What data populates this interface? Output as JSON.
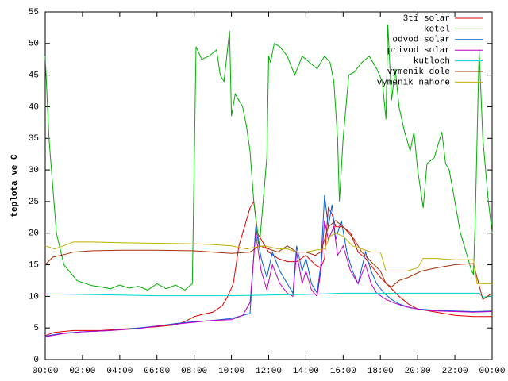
{
  "chart_data": {
    "type": "line",
    "ylabel": "teplota ve C",
    "xlim": [
      0,
      24
    ],
    "ylim": [
      0,
      55
    ],
    "xticks": [
      {
        "value": 0,
        "label": "00:00"
      },
      {
        "value": 2,
        "label": "02:00"
      },
      {
        "value": 4,
        "label": "04:00"
      },
      {
        "value": 6,
        "label": "06:00"
      },
      {
        "value": 8,
        "label": "08:00"
      },
      {
        "value": 10,
        "label": "10:00"
      },
      {
        "value": 12,
        "label": "12:00"
      },
      {
        "value": 14,
        "label": "14:00"
      },
      {
        "value": 16,
        "label": "16:00"
      },
      {
        "value": 18,
        "label": "18:00"
      },
      {
        "value": 20,
        "label": "20:00"
      },
      {
        "value": 22,
        "label": "22:00"
      },
      {
        "value": 24,
        "label": "00:00"
      }
    ],
    "yticks": [
      0,
      5,
      10,
      15,
      20,
      25,
      30,
      35,
      40,
      45,
      50,
      55
    ],
    "grid": false,
    "legend": "top-right",
    "series": [
      {
        "name": "3ti solar",
        "color": "#e00000",
        "x": [
          0,
          0.5,
          1.5,
          3,
          4,
          5,
          6,
          7,
          7.5,
          8,
          8.5,
          9,
          9.5,
          9.8,
          10.1,
          10.4,
          10.7,
          11.0,
          11.2,
          11.4,
          11.6,
          12.0,
          12.5,
          13.0,
          13.5,
          14.0,
          14.5,
          14.8,
          15.0,
          15.2,
          15.4,
          15.6,
          16.0,
          16.4,
          16.6,
          16.8,
          17.2,
          17.6,
          18.0,
          18.5,
          19.0,
          19.5,
          20,
          21,
          22,
          23,
          24
        ],
        "values": [
          3.8,
          4.3,
          4.6,
          4.6,
          4.8,
          5,
          5.2,
          5.5,
          6,
          6.8,
          7.2,
          7.5,
          8.5,
          10,
          12,
          18,
          21,
          24,
          25,
          20,
          19,
          17,
          16,
          15.5,
          15.5,
          16.5,
          15,
          14.5,
          16,
          24,
          23,
          21,
          21,
          20,
          18.5,
          17,
          16,
          14.5,
          13,
          11.5,
          10,
          8.8,
          8,
          7.5,
          7,
          6.8,
          6.8
        ]
      },
      {
        "name": "kotel",
        "color": "#00b000",
        "x": [
          0,
          0.2,
          0.6,
          1,
          1.7,
          2.5,
          3,
          3.5,
          4,
          4.5,
          5,
          5.5,
          6,
          6.5,
          7,
          7.5,
          7.9,
          8.1,
          8.4,
          8.8,
          9.2,
          9.4,
          9.6,
          9.9,
          10.0,
          10.2,
          10.6,
          10.8,
          11.0,
          11.2,
          11.5,
          11.7,
          11.9,
          12.0,
          12.1,
          12.3,
          12.6,
          13.0,
          13.4,
          13.8,
          14.2,
          14.6,
          15.0,
          15.3,
          15.5,
          15.7,
          15.8,
          16.0,
          16.3,
          16.6,
          17.0,
          17.4,
          17.8,
          18.1,
          18.3,
          18.4,
          18.6,
          18.8,
          19.0,
          19.3,
          19.6,
          19.8,
          20.0,
          20.3,
          20.5,
          20.9,
          21.3,
          21.5,
          21.7,
          22.0,
          22.3,
          22.6,
          22.9,
          23.0,
          23.1,
          23.3,
          23.5,
          23.8,
          24
        ],
        "values": [
          48,
          35,
          20,
          15,
          12.5,
          11.7,
          11.5,
          11.2,
          11.8,
          11.3,
          11.6,
          11,
          12,
          11.2,
          11.8,
          11,
          12,
          49.5,
          47.5,
          48,
          49,
          45,
          44,
          52,
          38.5,
          42,
          40,
          37,
          33,
          25,
          18,
          25,
          32,
          48,
          47,
          50,
          49.5,
          48,
          45,
          48,
          47,
          46,
          48,
          47,
          44,
          35,
          25,
          35,
          45,
          45.5,
          47,
          48,
          46,
          44,
          38,
          53,
          41,
          46,
          40,
          36,
          33,
          36,
          30,
          24,
          31,
          32,
          36,
          31,
          30,
          25,
          20,
          17,
          14,
          13.5,
          23,
          49,
          35,
          25,
          20
        ]
      },
      {
        "name": "odvod solar",
        "color": "#0060e0",
        "x": [
          0,
          1,
          2,
          3.5,
          5,
          6,
          7,
          8,
          9,
          10,
          11.0,
          11.3,
          11.6,
          11.9,
          12.2,
          12.6,
          13.0,
          13.3,
          13.5,
          13.8,
          14.0,
          14.3,
          14.6,
          14.8,
          15.0,
          15.2,
          15.4,
          15.6,
          15.9,
          16.2,
          16.5,
          16.8,
          17.2,
          17.5,
          17.8,
          18.2,
          18.6,
          19.0,
          19.5,
          20,
          21,
          22,
          23,
          24
        ],
        "values": [
          3.7,
          4.2,
          4.4,
          4.6,
          5,
          5.3,
          5.7,
          6,
          6.2,
          6.5,
          7.3,
          21,
          16,
          13,
          17,
          14,
          12,
          10.5,
          18,
          14,
          16,
          12,
          10.5,
          15,
          26,
          21,
          24.5,
          19,
          22,
          17,
          14,
          12,
          17,
          14,
          12,
          10.5,
          9.5,
          8.8,
          8.3,
          8,
          7.8,
          7.7,
          7.6,
          7.7
        ]
      },
      {
        "name": "privod solar",
        "color": "#c000c0",
        "x": [
          0,
          1,
          2,
          3.5,
          5,
          6,
          7,
          8,
          9,
          10,
          10.6,
          11.0,
          11.3,
          11.6,
          11.9,
          12.2,
          12.6,
          13.0,
          13.3,
          13.5,
          13.8,
          14.0,
          14.3,
          14.6,
          14.8,
          15.0,
          15.2,
          15.5,
          15.7,
          16.0,
          16.4,
          16.8,
          17.2,
          17.5,
          17.8,
          18.3,
          18.7,
          19.2,
          19.6,
          20.2,
          21,
          22,
          23,
          24
        ],
        "values": [
          3.6,
          4.1,
          4.4,
          4.6,
          4.9,
          5.3,
          5.6,
          5.9,
          6.2,
          6.3,
          7,
          9,
          20,
          14,
          11,
          15,
          12,
          10.5,
          10,
          17,
          12,
          14,
          11,
          10,
          14,
          22,
          19,
          21,
          16.5,
          18,
          14,
          12,
          15,
          12,
          10.5,
          9.5,
          9,
          8.5,
          8.2,
          7.9,
          7.7,
          7.6,
          7.5,
          7.6
        ]
      },
      {
        "name": "kutloch",
        "color": "#00d0d0",
        "x": [
          0,
          2,
          4,
          6,
          8,
          10,
          12,
          14,
          16,
          18,
          20,
          22,
          23.3,
          23.5,
          24
        ],
        "values": [
          10.4,
          10.3,
          10.2,
          10.1,
          10.1,
          10.1,
          10.2,
          10.3,
          10.5,
          10.5,
          10.5,
          10.5,
          10.5,
          9.9,
          10
        ]
      },
      {
        "name": "vymenik dole",
        "color": "#a03000",
        "x": [
          0,
          0.4,
          1,
          1.5,
          2.5,
          4,
          6,
          8,
          9,
          10,
          11,
          11.5,
          12,
          12.5,
          13,
          13.5,
          14,
          14.5,
          14.8,
          15.2,
          15.6,
          16,
          16.6,
          17,
          17.5,
          18,
          18.3,
          18.6,
          19,
          19.5,
          20.2,
          21,
          22,
          23,
          23.5,
          24
        ],
        "values": [
          15,
          16.2,
          16.6,
          17,
          17.2,
          17.3,
          17.3,
          17.2,
          17.0,
          16.8,
          17,
          18,
          17.5,
          17,
          18,
          17,
          17,
          16.5,
          17,
          21,
          22,
          21,
          19,
          17,
          15.5,
          14,
          12,
          11.5,
          12.5,
          13,
          14,
          14.5,
          15,
          15.2,
          9.5,
          10.5
        ]
      },
      {
        "name": "vymenik nahore",
        "color": "#c0b000",
        "x": [
          0,
          0.5,
          1,
          1.5,
          2.5,
          4,
          6,
          8,
          9,
          10,
          10.8,
          11.3,
          11.8,
          12.5,
          13,
          13.5,
          14,
          14.5,
          15,
          15.3,
          15.6,
          16,
          16.5,
          17,
          17.5,
          18,
          18.3,
          18.7,
          19.4,
          20,
          20.3,
          21,
          22,
          23,
          23.2,
          24
        ],
        "values": [
          18,
          17.5,
          18,
          18.6,
          18.6,
          18.5,
          18.4,
          18.3,
          18.2,
          18,
          17.5,
          17.8,
          18,
          17.5,
          17.5,
          17,
          17,
          17.3,
          17.5,
          19.5,
          20,
          19.5,
          18,
          17.5,
          17,
          17,
          14,
          14,
          14,
          14.5,
          16,
          16,
          15.8,
          15.8,
          12,
          12
        ]
      }
    ]
  }
}
